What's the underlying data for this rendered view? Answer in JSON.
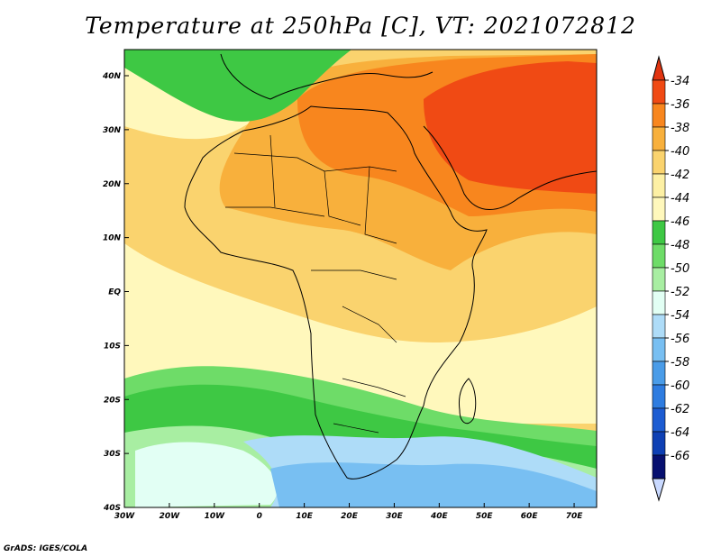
{
  "title": "Temperature at 250hPa [C], VT: 2021072812",
  "credit": "GrADS: IGES/COLA",
  "lon_ticks": [
    "30W",
    "20W",
    "10W",
    "0",
    "10E",
    "20E",
    "30E",
    "40E",
    "50E",
    "60E",
    "70E"
  ],
  "lat_ticks": [
    "40N",
    "30N",
    "20N",
    "10N",
    "EQ",
    "10S",
    "20S",
    "30S",
    "40S"
  ],
  "colorbar": {
    "labels": [
      "-34",
      "-36",
      "-38",
      "-40",
      "-42",
      "-44",
      "-46",
      "-48",
      "-50",
      "-52",
      "-54",
      "-56",
      "-58",
      "-60",
      "-62",
      "-64",
      "-66"
    ],
    "colors": [
      "#f04a14",
      "#f8861e",
      "#f8b03c",
      "#fad36e",
      "#fdf0a4",
      "#fff8bc",
      "#3ec844",
      "#6edc68",
      "#a8eea2",
      "#e2fff4",
      "#aedcf8",
      "#78bff2",
      "#4a9ce8",
      "#2e7ce0",
      "#1c5cd2",
      "#0e40b4",
      "#071070"
    ],
    "top_arrow_color": "#e13410",
    "bottom_arrow_color": "#c9d9ff"
  },
  "field": {
    "bg": "#fad36e",
    "band_44": "#fff8bc",
    "band_40": "#f8b03c",
    "band_38": "#f8861e",
    "band_34": "#f04a14",
    "cold_46": "#3ec844",
    "cold_48": "#6edc68",
    "cold_50": "#a8eea2",
    "cold_52": "#e2fff4",
    "cold_54": "#aedcf8",
    "cold_56": "#78bff2",
    "cold_58": "#4a9ce8"
  }
}
